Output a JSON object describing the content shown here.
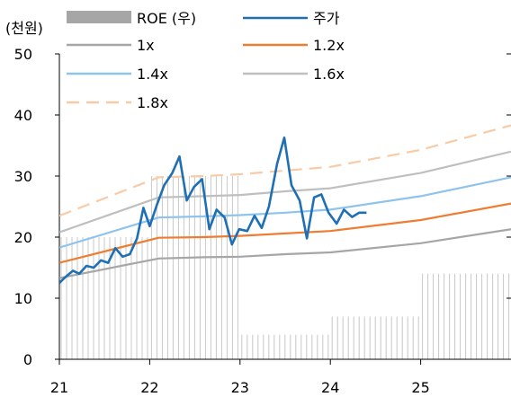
{
  "chart_data": {
    "type": "line",
    "unit_label": "(천원)",
    "x_tick_labels": [
      "21",
      "22",
      "23",
      "24",
      "25"
    ],
    "xlim": [
      21.0,
      26.0
    ],
    "ylim": [
      0,
      50
    ],
    "y_ticks": [
      0,
      10,
      20,
      30,
      40,
      50
    ],
    "legend_position": "top",
    "grid": false,
    "bars": {
      "name": "ROE (우)",
      "color": "#a6a6a6",
      "segments": [
        {
          "x_start": 21.0,
          "x_end": 22.0,
          "value": 0.4
        },
        {
          "x_start": 22.0,
          "x_end": 23.0,
          "value": 0.6
        },
        {
          "x_start": 23.0,
          "x_end": 24.0,
          "value": 0.08
        },
        {
          "x_start": 24.0,
          "x_end": 25.0,
          "value": 0.14
        },
        {
          "x_start": 25.0,
          "x_end": 26.0,
          "value": 0.28
        }
      ]
    },
    "series": [
      {
        "name": "주가",
        "color": "#1f6fb5",
        "style": "solid",
        "x": [
          21.0,
          21.07,
          21.15,
          21.22,
          21.3,
          21.38,
          21.46,
          21.54,
          21.62,
          21.7,
          21.78,
          21.86,
          21.93,
          22.0,
          22.08,
          22.16,
          22.25,
          22.33,
          22.41,
          22.49,
          22.58,
          22.66,
          22.74,
          22.83,
          22.91,
          22.99,
          23.08,
          23.16,
          23.24,
          23.32,
          23.41,
          23.49,
          23.57,
          23.66,
          23.74,
          23.82,
          23.9,
          23.98,
          24.07,
          24.15,
          24.24,
          24.32,
          24.4
        ],
        "y": [
          12.5,
          13.5,
          14.5,
          14.0,
          15.3,
          15.0,
          16.2,
          15.8,
          18.2,
          16.8,
          17.2,
          19.8,
          24.8,
          21.8,
          25.3,
          28.5,
          30.5,
          33.2,
          26.0,
          28.2,
          29.5,
          21.3,
          24.5,
          23.2,
          18.8,
          21.3,
          21.0,
          23.5,
          21.5,
          25.0,
          32.0,
          36.3,
          28.5,
          26.0,
          19.8,
          26.5,
          27.0,
          24.0,
          22.2,
          24.5,
          23.3,
          24.0,
          24.0
        ]
      },
      {
        "name": "1x",
        "color": "#a6a6a6",
        "style": "solid",
        "x": [
          21.0,
          22.1,
          22.6,
          23.0,
          23.5,
          24.0,
          25.0,
          26.0
        ],
        "y": [
          13.3,
          16.5,
          16.7,
          16.8,
          17.2,
          17.5,
          19.0,
          21.3
        ]
      },
      {
        "name": "1.2x",
        "color": "#ee7d31",
        "style": "solid",
        "x": [
          21.0,
          22.1,
          22.6,
          23.0,
          23.5,
          24.0,
          25.0,
          26.0
        ],
        "y": [
          15.8,
          19.9,
          20.0,
          20.2,
          20.6,
          21.0,
          22.8,
          25.5
        ]
      },
      {
        "name": "1.4x",
        "color": "#8ec3ee",
        "style": "solid",
        "x": [
          21.0,
          22.1,
          22.6,
          23.0,
          23.5,
          24.0,
          25.0,
          26.0
        ],
        "y": [
          18.3,
          23.2,
          23.4,
          23.6,
          24.0,
          24.5,
          26.7,
          29.8
        ]
      },
      {
        "name": "1.6x",
        "color": "#bfbfbf",
        "style": "solid",
        "x": [
          21.0,
          22.1,
          22.6,
          23.0,
          23.5,
          24.0,
          25.0,
          26.0
        ],
        "y": [
          20.8,
          26.5,
          26.7,
          26.9,
          27.5,
          28.0,
          30.5,
          34.0
        ]
      },
      {
        "name": "1.8x",
        "color": "#f8cba6",
        "style": "dashed",
        "x": [
          21.0,
          22.1,
          22.6,
          23.0,
          23.5,
          24.0,
          25.0,
          26.0
        ],
        "y": [
          23.5,
          29.8,
          30.0,
          30.3,
          30.9,
          31.5,
          34.3,
          38.3
        ]
      }
    ]
  }
}
